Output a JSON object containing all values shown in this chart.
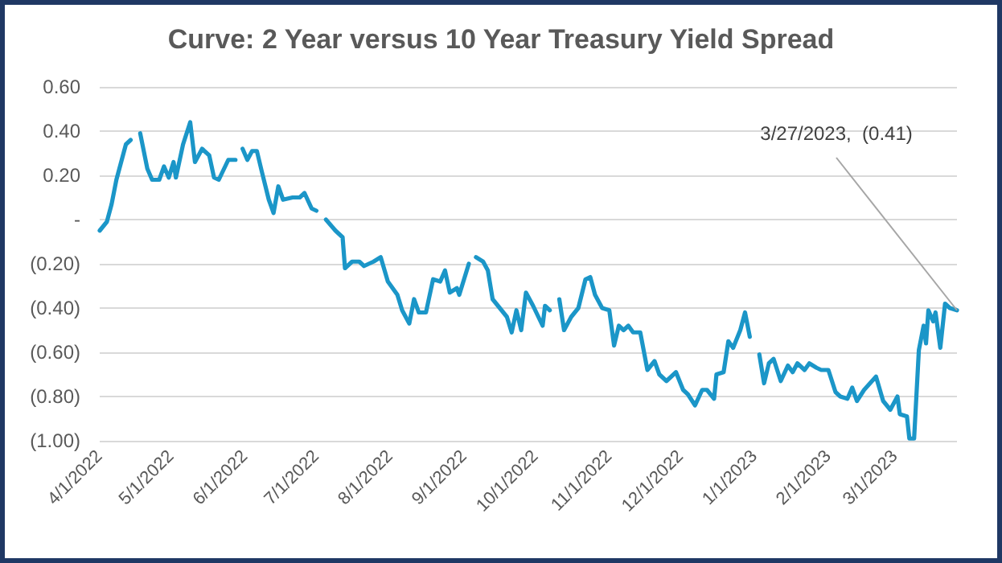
{
  "chart_data": {
    "type": "line",
    "title": "Curve: 2 Year versus 10 Year Treasury Yield Spread",
    "x": [
      "2022-04-01",
      "2022-04-04",
      "2022-04-06",
      "2022-04-08",
      "2022-04-12",
      "2022-04-14",
      "2022-04-15",
      "2022-04-18",
      "2022-04-21",
      "2022-04-23",
      "2022-04-26",
      "2022-04-28",
      "2022-04-30",
      "2022-05-02",
      "2022-05-03",
      "2022-05-06",
      "2022-05-09",
      "2022-05-11",
      "2022-05-14",
      "2022-05-17",
      "2022-05-19",
      "2022-05-21",
      "2022-05-25",
      "2022-05-28",
      "2022-05-29",
      "2022-05-31",
      "2022-06-02",
      "2022-06-04",
      "2022-06-06",
      "2022-06-08",
      "2022-06-11",
      "2022-06-13",
      "2022-06-15",
      "2022-06-17",
      "2022-06-21",
      "2022-06-24",
      "2022-06-26",
      "2022-06-29",
      "2022-07-01",
      "2022-07-03",
      "2022-07-05",
      "2022-07-09",
      "2022-07-12",
      "2022-07-13",
      "2022-07-16",
      "2022-07-19",
      "2022-07-21",
      "2022-07-25",
      "2022-07-28",
      "2022-07-31",
      "2022-08-04",
      "2022-08-06",
      "2022-08-09",
      "2022-08-11",
      "2022-08-13",
      "2022-08-16",
      "2022-08-19",
      "2022-08-22",
      "2022-08-24",
      "2022-08-26",
      "2022-08-29",
      "2022-08-30",
      "2022-09-03",
      "2022-09-05",
      "2022-09-06",
      "2022-09-09",
      "2022-09-11",
      "2022-09-13",
      "2022-09-16",
      "2022-09-19",
      "2022-09-21",
      "2022-09-23",
      "2022-09-25",
      "2022-09-27",
      "2022-09-30",
      "2022-10-04",
      "2022-10-05",
      "2022-10-07",
      "2022-10-09",
      "2022-10-11",
      "2022-10-13",
      "2022-10-16",
      "2022-10-19",
      "2022-10-22",
      "2022-10-24",
      "2022-10-26",
      "2022-10-29",
      "2022-11-01",
      "2022-11-03",
      "2022-11-05",
      "2022-11-07",
      "2022-11-09",
      "2022-11-11",
      "2022-11-14",
      "2022-11-17",
      "2022-11-20",
      "2022-11-22",
      "2022-11-25",
      "2022-11-29",
      "2022-12-02",
      "2022-12-04",
      "2022-12-07",
      "2022-12-10",
      "2022-12-12",
      "2022-12-15",
      "2022-12-16",
      "2022-12-19",
      "2022-12-21",
      "2022-12-23",
      "2022-12-26",
      "2022-12-28",
      "2022-12-30",
      "2023-01-01",
      "2023-01-03",
      "2023-01-05",
      "2023-01-07",
      "2023-01-09",
      "2023-01-12",
      "2023-01-15",
      "2023-01-17",
      "2023-01-19",
      "2023-01-22",
      "2023-01-24",
      "2023-01-27",
      "2023-01-29",
      "2023-02-01",
      "2023-02-04",
      "2023-02-06",
      "2023-02-09",
      "2023-02-11",
      "2023-02-13",
      "2023-02-16",
      "2023-02-21",
      "2023-02-24",
      "2023-02-27",
      "2023-03-02",
      "2023-03-03",
      "2023-03-06",
      "2023-03-07",
      "2023-03-09",
      "2023-03-11",
      "2023-03-13",
      "2023-03-14",
      "2023-03-15",
      "2023-03-17",
      "2023-03-18",
      "2023-03-20",
      "2023-03-22",
      "2023-03-24",
      "2023-03-27"
    ],
    "series": [
      {
        "color": "#1b96c8",
        "values": [
          -0.05,
          -0.01,
          0.07,
          0.18,
          0.34,
          0.36,
          null,
          0.39,
          0.23,
          0.18,
          0.18,
          0.24,
          0.19,
          0.26,
          0.19,
          0.34,
          0.44,
          0.26,
          0.32,
          0.29,
          0.19,
          0.18,
          0.27,
          0.27,
          null,
          0.32,
          0.27,
          0.31,
          0.31,
          0.22,
          0.09,
          0.03,
          0.15,
          0.09,
          0.1,
          0.1,
          0.12,
          0.05,
          0.04,
          null,
          0.0,
          -0.05,
          -0.08,
          -0.22,
          -0.19,
          -0.19,
          -0.21,
          -0.19,
          -0.17,
          -0.28,
          -0.34,
          -0.41,
          -0.47,
          -0.36,
          -0.42,
          -0.42,
          -0.27,
          -0.28,
          -0.23,
          -0.33,
          -0.31,
          -0.34,
          -0.2,
          null,
          -0.17,
          -0.19,
          -0.23,
          -0.36,
          -0.4,
          -0.44,
          -0.51,
          -0.41,
          -0.5,
          -0.33,
          -0.39,
          -0.48,
          -0.39,
          -0.41,
          null,
          -0.36,
          -0.5,
          -0.44,
          -0.4,
          -0.27,
          -0.26,
          -0.34,
          -0.4,
          -0.41,
          -0.57,
          -0.48,
          -0.5,
          -0.48,
          -0.51,
          -0.51,
          -0.68,
          -0.64,
          -0.7,
          -0.73,
          -0.69,
          -0.77,
          -0.79,
          -0.84,
          -0.77,
          -0.77,
          -0.81,
          -0.7,
          -0.69,
          -0.55,
          -0.58,
          -0.5,
          -0.42,
          -0.53,
          null,
          -0.61,
          -0.74,
          -0.65,
          -0.63,
          -0.73,
          -0.66,
          -0.69,
          -0.65,
          -0.68,
          -0.65,
          -0.67,
          -0.68,
          -0.68,
          -0.78,
          -0.8,
          -0.81,
          -0.76,
          -0.82,
          -0.77,
          -0.71,
          -0.82,
          -0.86,
          -0.8,
          -0.88,
          -0.89,
          -0.99,
          -0.99,
          -0.59,
          -0.48,
          -0.56,
          -0.41,
          -0.46,
          -0.42,
          -0.58,
          -0.38,
          -0.4,
          -0.41
        ]
      }
    ],
    "xlim": [
      "2022-04-01",
      "2023-03-27"
    ],
    "xticks": [
      {
        "value": "2022-04-01",
        "label": "4/1/2022"
      },
      {
        "value": "2022-05-01",
        "label": "5/1/2022"
      },
      {
        "value": "2022-06-01",
        "label": "6/1/2022"
      },
      {
        "value": "2022-07-01",
        "label": "7/1/2022"
      },
      {
        "value": "2022-08-01",
        "label": "8/1/2022"
      },
      {
        "value": "2022-09-01",
        "label": "9/1/2022"
      },
      {
        "value": "2022-10-01",
        "label": "10/1/2022"
      },
      {
        "value": "2022-11-01",
        "label": "11/1/2022"
      },
      {
        "value": "2022-12-01",
        "label": "12/1/2022"
      },
      {
        "value": "2023-01-01",
        "label": "1/1/2023"
      },
      {
        "value": "2023-02-01",
        "label": "2/1/2023"
      },
      {
        "value": "2023-03-01",
        "label": "3/1/2023"
      }
    ],
    "ylim": [
      -1.0,
      0.6
    ],
    "yticks": [
      {
        "value": -1.0,
        "label": "(1.00)"
      },
      {
        "value": -0.8,
        "label": "(0.80)"
      },
      {
        "value": -0.6,
        "label": "(0.60)"
      },
      {
        "value": -0.4,
        "label": "(0.40)"
      },
      {
        "value": -0.2,
        "label": "(0.20)"
      },
      {
        "value": 0,
        "label": "-"
      },
      {
        "value": 0.2,
        "label": "0.20"
      },
      {
        "value": 0.4,
        "label": "0.40"
      },
      {
        "value": 0.6,
        "label": "0.60"
      }
    ],
    "grid": "y",
    "marker": "none",
    "line_style": "solid",
    "annotations": [
      {
        "text": "3/27/2023,  (0.41)",
        "x": "2023-03-27",
        "y": -0.41
      }
    ]
  }
}
